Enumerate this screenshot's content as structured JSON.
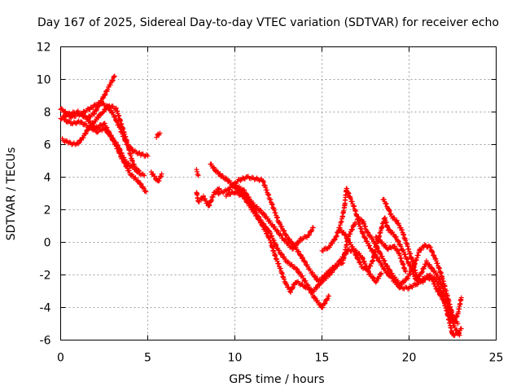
{
  "chart_data": {
    "type": "scatter",
    "title": "Day 167 of 2025, Sidereal Day-to-day VTEC variation (SDTVAR) for receiver echo",
    "xlabel": "GPS time / hours",
    "ylabel": "SDTVAR / TECUs",
    "xlim": [
      0,
      25
    ],
    "ylim": [
      -6,
      12
    ],
    "x_ticks": [
      0,
      5,
      10,
      15,
      20,
      25
    ],
    "y_ticks": [
      -6,
      -4,
      -2,
      0,
      2,
      4,
      6,
      8,
      10,
      12
    ],
    "grid": true,
    "marker": "+",
    "color": "#ff0000",
    "series": [
      {
        "name": "track-1",
        "points": [
          [
            0.0,
            7.6
          ],
          [
            0.5,
            7.9
          ],
          [
            1.0,
            8.0
          ],
          [
            1.5,
            7.6
          ],
          [
            2.0,
            7.0
          ],
          [
            2.5,
            7.3
          ],
          [
            3.0,
            6.3
          ],
          [
            3.5,
            5.2
          ],
          [
            4.0,
            4.2
          ],
          [
            4.5,
            3.7
          ],
          [
            4.9,
            3.1
          ]
        ]
      },
      {
        "name": "track-2",
        "points": [
          [
            0.0,
            8.2
          ],
          [
            0.6,
            7.7
          ],
          [
            1.2,
            7.9
          ],
          [
            1.8,
            8.3
          ],
          [
            2.3,
            8.6
          ],
          [
            2.7,
            8.3
          ],
          [
            3.0,
            7.9
          ],
          [
            3.4,
            7.0
          ],
          [
            3.8,
            6.0
          ],
          [
            4.2,
            5.6
          ],
          [
            4.6,
            5.4
          ],
          [
            5.0,
            5.3
          ]
        ]
      },
      {
        "name": "track-3",
        "points": [
          [
            0.1,
            6.3
          ],
          [
            0.5,
            6.1
          ],
          [
            0.9,
            6.0
          ],
          [
            1.2,
            6.3
          ],
          [
            1.6,
            7.0
          ],
          [
            2.0,
            7.5
          ],
          [
            2.4,
            8.0
          ],
          [
            2.8,
            8.4
          ],
          [
            3.2,
            8.2
          ],
          [
            3.5,
            7.2
          ],
          [
            3.8,
            6.2
          ],
          [
            4.1,
            5.0
          ],
          [
            4.4,
            4.3
          ],
          [
            4.8,
            4.1
          ]
        ]
      },
      {
        "name": "track-4",
        "points": [
          [
            1.5,
            7.6
          ],
          [
            1.9,
            7.9
          ],
          [
            2.2,
            8.4
          ],
          [
            2.5,
            9.0
          ],
          [
            2.8,
            9.6
          ],
          [
            3.1,
            10.2
          ]
        ]
      },
      {
        "name": "track-5",
        "points": [
          [
            0.2,
            7.5
          ],
          [
            0.7,
            7.3
          ],
          [
            1.1,
            7.4
          ],
          [
            1.6,
            7.1
          ],
          [
            2.1,
            6.8
          ],
          [
            2.5,
            7.0
          ],
          [
            2.9,
            6.5
          ],
          [
            3.3,
            5.9
          ],
          [
            3.7,
            5.0
          ],
          [
            4.1,
            4.6
          ],
          [
            4.5,
            4.4
          ]
        ]
      },
      {
        "name": "track-6",
        "points": [
          [
            5.2,
            4.3
          ],
          [
            5.4,
            4.0
          ],
          [
            5.6,
            3.7
          ],
          [
            5.8,
            4.2
          ]
        ]
      },
      {
        "name": "track-7",
        "points": [
          [
            5.5,
            6.5
          ],
          [
            5.7,
            6.7
          ]
        ]
      },
      {
        "name": "track-8",
        "points": [
          [
            7.8,
            4.4
          ],
          [
            7.9,
            4.1
          ]
        ]
      },
      {
        "name": "track-9",
        "points": [
          [
            7.8,
            3.1
          ],
          [
            7.9,
            2.5
          ],
          [
            8.2,
            2.8
          ],
          [
            8.5,
            2.2
          ],
          [
            8.8,
            3.0
          ],
          [
            9.1,
            3.3
          ]
        ]
      },
      {
        "name": "track-10",
        "points": [
          [
            8.6,
            4.8
          ],
          [
            8.9,
            4.4
          ],
          [
            9.2,
            4.1
          ],
          [
            9.6,
            3.8
          ],
          [
            10.0,
            3.4
          ],
          [
            10.5,
            3.0
          ],
          [
            11.0,
            2.2
          ],
          [
            11.5,
            1.3
          ],
          [
            12.0,
            0.6
          ],
          [
            12.5,
            -0.5
          ],
          [
            13.0,
            -1.2
          ],
          [
            13.5,
            -1.6
          ],
          [
            14.0,
            -2.3
          ],
          [
            14.5,
            -3.3
          ],
          [
            15.0,
            -4.0
          ],
          [
            15.4,
            -3.3
          ]
        ]
      },
      {
        "name": "track-11",
        "points": [
          [
            9.0,
            3.0
          ],
          [
            9.6,
            3.2
          ],
          [
            10.2,
            3.8
          ],
          [
            10.7,
            4.0
          ],
          [
            11.2,
            3.9
          ],
          [
            11.6,
            3.8
          ],
          [
            12.0,
            2.7
          ],
          [
            12.5,
            1.3
          ],
          [
            13.0,
            0.3
          ],
          [
            13.4,
            -0.2
          ],
          [
            13.9,
            -1.0
          ],
          [
            14.3,
            -1.7
          ],
          [
            14.8,
            -2.4
          ],
          [
            15.2,
            -2.0
          ],
          [
            15.7,
            -1.5
          ],
          [
            16.2,
            -1.2
          ],
          [
            16.5,
            0.3
          ],
          [
            16.9,
            1.2
          ]
        ]
      },
      {
        "name": "track-12",
        "points": [
          [
            9.5,
            2.9
          ],
          [
            10.0,
            3.1
          ],
          [
            10.5,
            2.8
          ],
          [
            11.0,
            2.0
          ],
          [
            11.5,
            1.2
          ],
          [
            12.0,
            0.2
          ],
          [
            12.3,
            -0.8
          ],
          [
            12.6,
            -1.6
          ],
          [
            12.9,
            -2.5
          ],
          [
            13.2,
            -3.0
          ],
          [
            13.5,
            -2.4
          ],
          [
            14.0,
            -2.7
          ],
          [
            14.5,
            -3.0
          ],
          [
            15.0,
            -2.4
          ],
          [
            15.5,
            -1.9
          ],
          [
            16.0,
            -1.2
          ],
          [
            16.5,
            -0.5
          ],
          [
            16.9,
            -0.5
          ],
          [
            17.3,
            -0.9
          ],
          [
            17.7,
            -1.9
          ],
          [
            18.1,
            -2.4
          ],
          [
            18.4,
            -1.9
          ]
        ]
      },
      {
        "name": "track-13",
        "points": [
          [
            10.0,
            3.5
          ],
          [
            10.5,
            3.2
          ],
          [
            11.0,
            2.4
          ],
          [
            11.6,
            1.8
          ],
          [
            12.2,
            1.0
          ],
          [
            12.8,
            0.2
          ],
          [
            13.3,
            -0.4
          ],
          [
            13.8,
            0.2
          ],
          [
            14.2,
            0.4
          ],
          [
            14.5,
            0.9
          ]
        ]
      },
      {
        "name": "track-14",
        "points": [
          [
            15.0,
            -0.5
          ],
          [
            15.4,
            -0.3
          ],
          [
            15.8,
            0.3
          ],
          [
            16.1,
            1.2
          ],
          [
            16.3,
            2.2
          ],
          [
            16.4,
            3.3
          ],
          [
            16.6,
            2.8
          ],
          [
            16.9,
            2.0
          ],
          [
            17.1,
            1.2
          ],
          [
            17.4,
            0.4
          ],
          [
            17.8,
            -0.4
          ],
          [
            18.2,
            -1.0
          ],
          [
            18.6,
            -1.7
          ],
          [
            19.0,
            -2.2
          ],
          [
            19.5,
            -2.8
          ],
          [
            20.0,
            -2.8
          ],
          [
            20.5,
            -2.5
          ],
          [
            20.9,
            -2.2
          ],
          [
            21.3,
            -2.2
          ],
          [
            21.6,
            -2.9
          ],
          [
            22.0,
            -3.6
          ],
          [
            22.3,
            -4.4
          ],
          [
            22.6,
            -5.2
          ],
          [
            22.9,
            -5.7
          ]
        ]
      },
      {
        "name": "track-15",
        "points": [
          [
            16.0,
            0.8
          ],
          [
            16.3,
            0.5
          ],
          [
            16.7,
            -0.2
          ],
          [
            17.0,
            -0.9
          ],
          [
            17.3,
            -1.5
          ],
          [
            17.6,
            -1.7
          ],
          [
            17.9,
            -1.2
          ],
          [
            18.1,
            -0.3
          ],
          [
            18.4,
            0.8
          ],
          [
            18.6,
            1.5
          ],
          [
            18.8,
            0.8
          ],
          [
            19.2,
            0.4
          ],
          [
            19.6,
            -0.4
          ],
          [
            20.0,
            -1.3
          ],
          [
            20.4,
            -2.3
          ],
          [
            20.7,
            -1.9
          ],
          [
            21.0,
            -1.2
          ],
          [
            21.3,
            -1.6
          ],
          [
            21.6,
            -2.0
          ],
          [
            21.9,
            -2.7
          ],
          [
            22.2,
            -3.7
          ],
          [
            22.5,
            -4.6
          ],
          [
            22.8,
            -5.0
          ]
        ]
      },
      {
        "name": "track-16",
        "points": [
          [
            17.1,
            1.5
          ],
          [
            17.4,
            1.2
          ],
          [
            17.6,
            0.6
          ],
          [
            17.9,
            0.2
          ],
          [
            18.3,
            -0.6
          ],
          [
            18.7,
            -1.4
          ],
          [
            19.1,
            -2.1
          ],
          [
            19.5,
            -2.6
          ],
          [
            19.9,
            -2.2
          ],
          [
            20.3,
            -1.4
          ],
          [
            20.6,
            -0.5
          ],
          [
            20.9,
            -0.2
          ],
          [
            21.2,
            -0.3
          ],
          [
            21.5,
            -1.0
          ],
          [
            21.8,
            -1.8
          ],
          [
            22.1,
            -2.9
          ],
          [
            22.4,
            -4.1
          ],
          [
            22.6,
            -4.8
          ],
          [
            22.8,
            -4.4
          ],
          [
            23.0,
            -3.4
          ]
        ]
      },
      {
        "name": "track-17",
        "points": [
          [
            18.5,
            2.7
          ],
          [
            18.8,
            2.1
          ],
          [
            19.0,
            1.6
          ],
          [
            19.3,
            1.3
          ],
          [
            19.6,
            0.7
          ],
          [
            19.9,
            -0.2
          ],
          [
            20.2,
            -1.2
          ],
          [
            20.5,
            -2.3
          ],
          [
            20.8,
            -2.4
          ],
          [
            21.1,
            -2.0
          ],
          [
            21.5,
            -2.2
          ],
          [
            21.9,
            -3.2
          ],
          [
            22.3,
            -4.8
          ],
          [
            22.5,
            -5.7
          ],
          [
            22.8,
            -5.6
          ],
          [
            23.0,
            -5.3
          ]
        ]
      },
      {
        "name": "track-18",
        "points": [
          [
            18.1,
            0.3
          ],
          [
            18.4,
            0.0
          ],
          [
            18.8,
            -0.4
          ],
          [
            19.1,
            -0.2
          ],
          [
            19.4,
            -0.6
          ],
          [
            19.6,
            -1.2
          ],
          [
            19.8,
            -1.8
          ]
        ]
      }
    ]
  }
}
